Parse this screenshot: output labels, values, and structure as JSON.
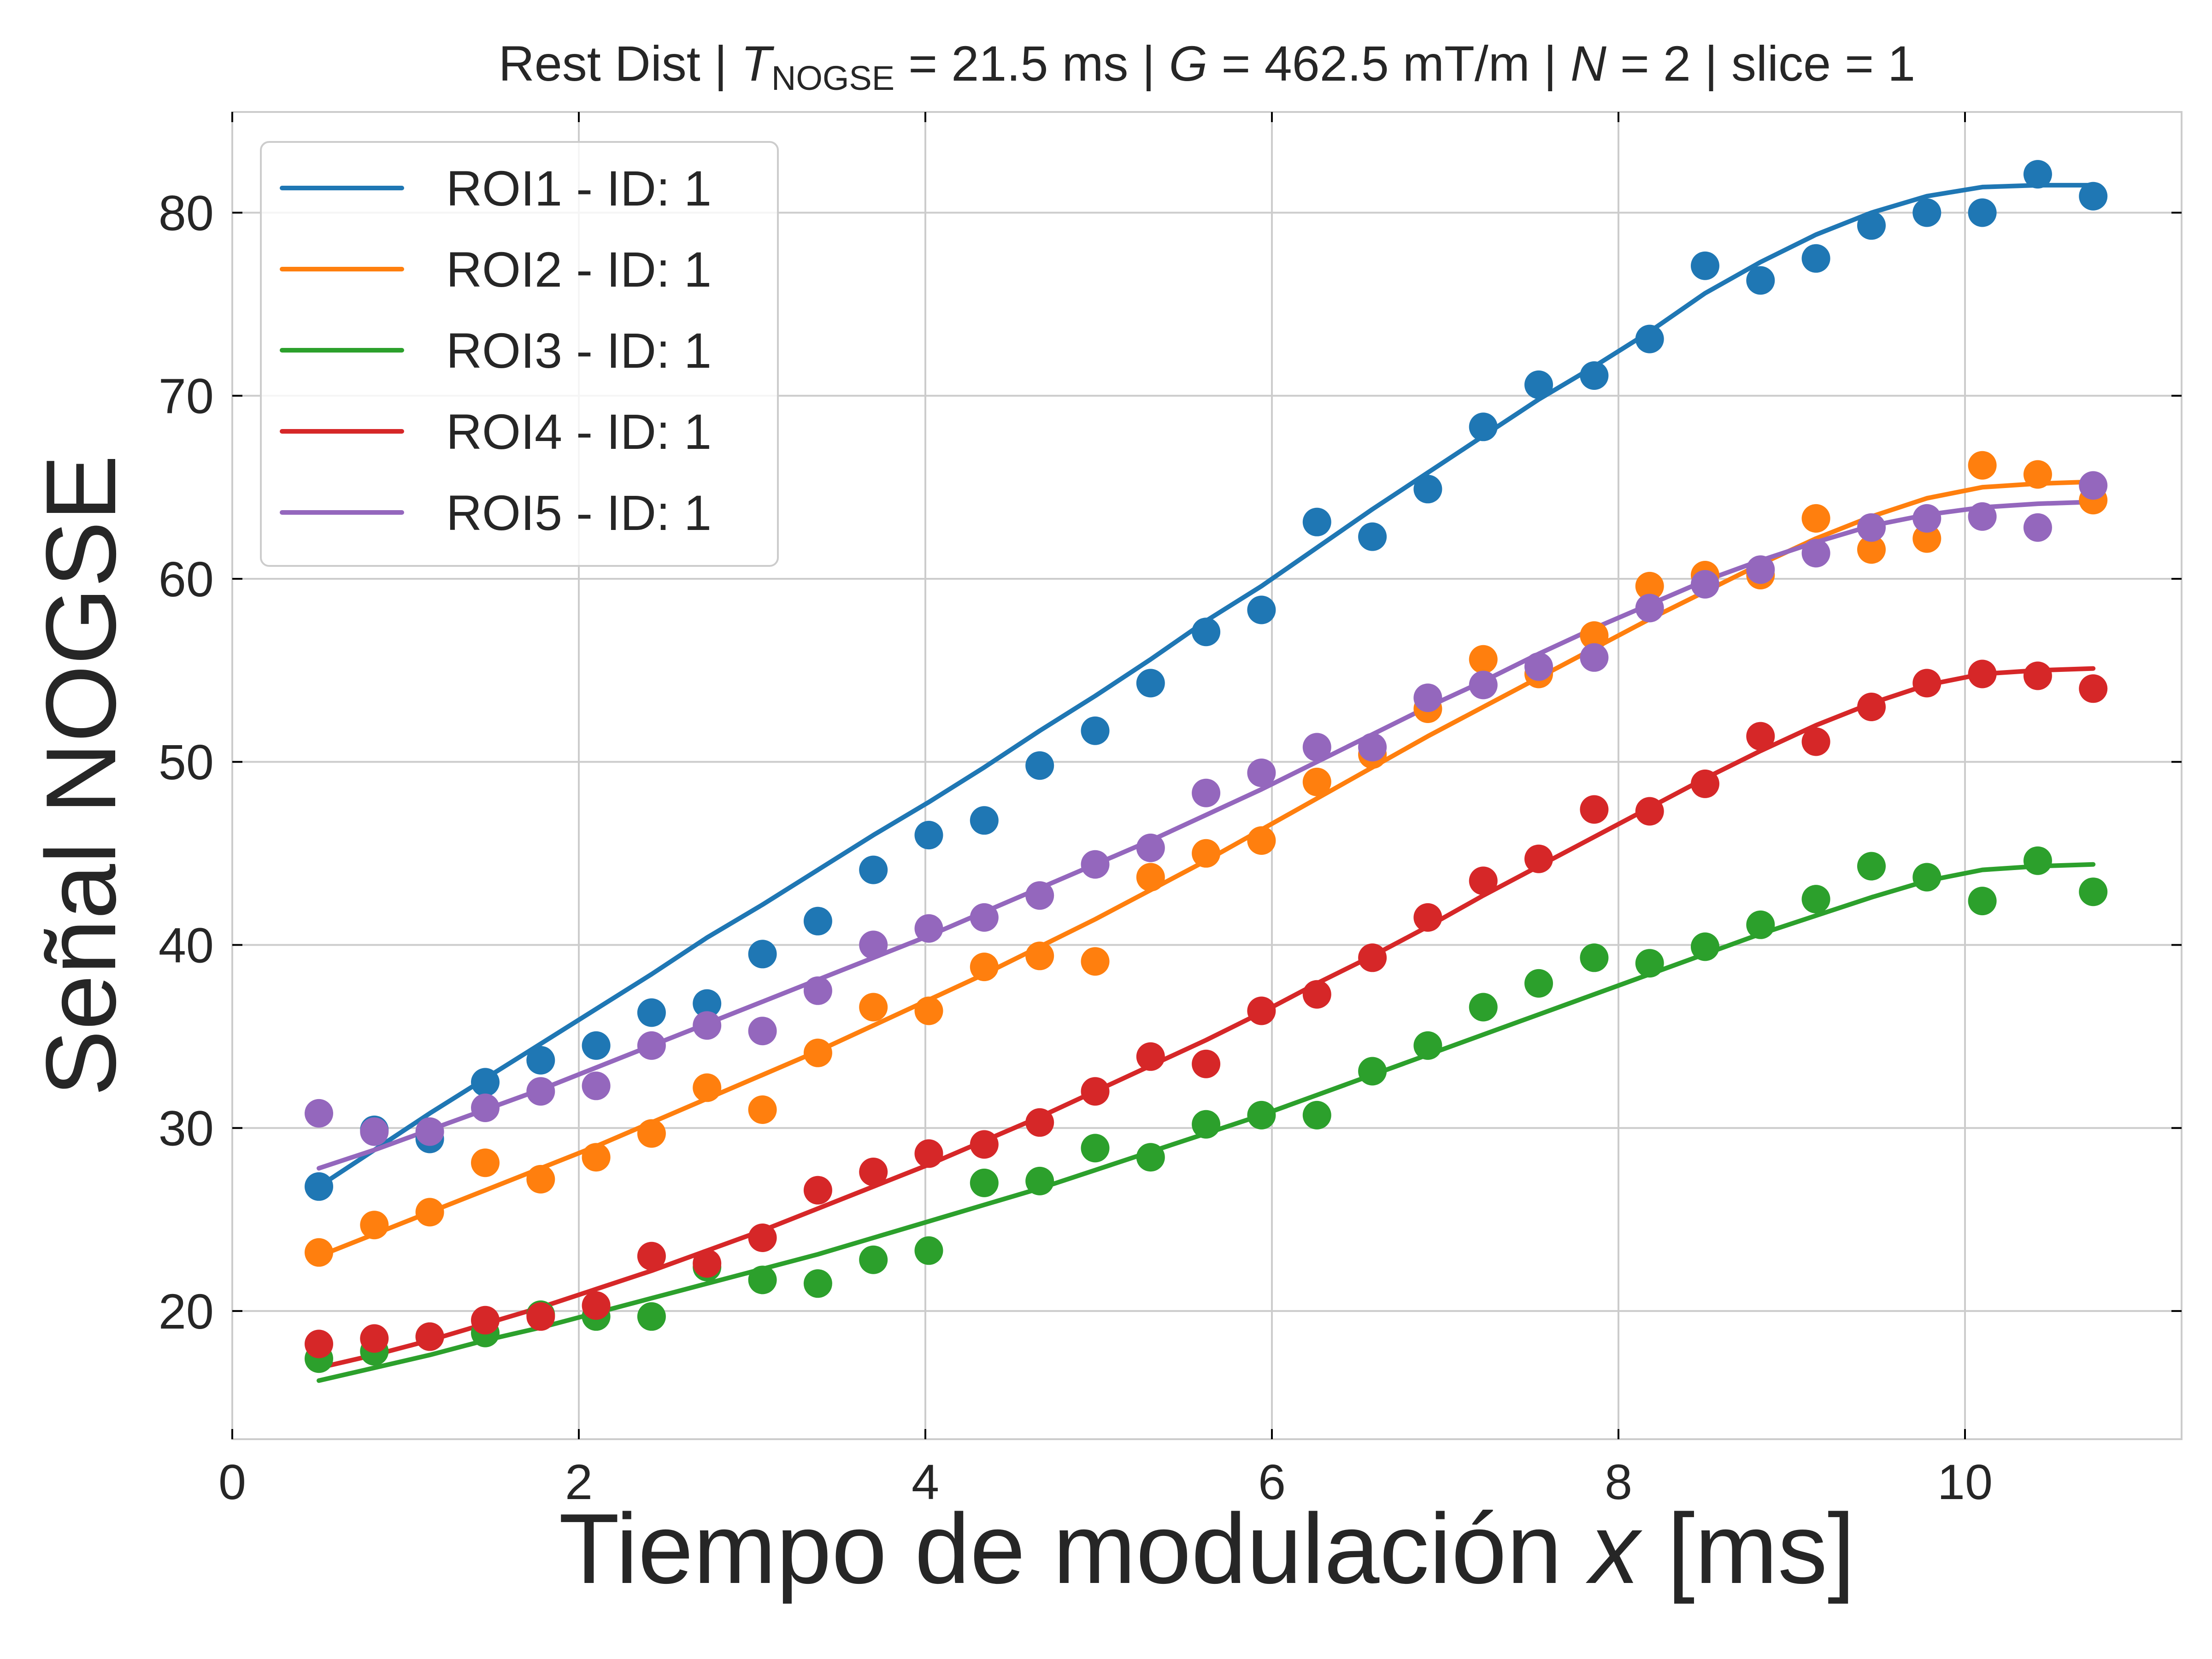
{
  "chart_data": {
    "type": "scatter",
    "title": {
      "prefix": "Rest Dist | ",
      "t_symbol": "T",
      "t_subscript": "NOGSE",
      "t_value": " = 21.5 ms | ",
      "g_symbol": "G",
      "g_value": " = 462.5 mT/m | ",
      "n_symbol": "N",
      "n_value": " = 2 | slice = 1"
    },
    "xlabel": {
      "prefix": "Tiempo de modulación ",
      "var": "x",
      "unit": " [ms]"
    },
    "ylabel": "Señal NOGSE",
    "xlim": [
      0,
      11.25
    ],
    "ylim": [
      13,
      85.5
    ],
    "xticks": [
      0,
      2,
      4,
      6,
      8,
      10
    ],
    "yticks": [
      20,
      30,
      40,
      50,
      60,
      70,
      80
    ],
    "grid": true,
    "legend_position": "top-left",
    "x": [
      0.5,
      0.82,
      1.14,
      1.46,
      1.78,
      2.1,
      2.42,
      2.74,
      3.06,
      3.38,
      3.7,
      4.02,
      4.34,
      4.66,
      4.98,
      5.3,
      5.62,
      5.94,
      6.26,
      6.58,
      6.9,
      7.22,
      7.54,
      7.86,
      8.18,
      8.5,
      8.82,
      9.14,
      9.46,
      9.78,
      10.1,
      10.42,
      10.74
    ],
    "series": [
      {
        "name": "ROI1 - ID: 1",
        "color": "#1f77b4",
        "points": [
          26.8,
          29.9,
          29.4,
          32.5,
          33.7,
          34.5,
          36.3,
          36.8,
          39.5,
          41.3,
          44.1,
          46.0,
          46.8,
          49.8,
          51.7,
          54.3,
          57.1,
          58.3,
          63.1,
          62.3,
          64.9,
          68.3,
          70.6,
          71.1,
          73.1,
          77.1,
          76.3,
          77.5,
          79.3,
          80.0,
          80.0,
          82.1,
          80.9
        ],
        "fit": [
          26.8,
          28.8,
          30.8,
          32.7,
          34.6,
          36.5,
          38.4,
          40.4,
          42.2,
          44.1,
          46.0,
          47.8,
          49.7,
          51.7,
          53.6,
          55.6,
          57.7,
          59.6,
          61.7,
          63.8,
          65.8,
          67.8,
          69.8,
          71.6,
          73.5,
          75.6,
          77.3,
          78.8,
          80.0,
          80.9,
          81.4,
          81.5,
          81.5
        ]
      },
      {
        "name": "ROI2 - ID: 1",
        "color": "#ff7f0e",
        "points": [
          23.2,
          24.7,
          25.4,
          28.1,
          27.2,
          28.4,
          29.7,
          32.2,
          31.0,
          34.1,
          36.6,
          36.4,
          38.8,
          39.4,
          39.1,
          43.7,
          45.0,
          45.7,
          48.9,
          50.4,
          52.9,
          55.6,
          54.8,
          56.9,
          59.6,
          60.2,
          60.2,
          63.3,
          61.6,
          62.2,
          66.2,
          65.7,
          64.3
        ],
        "fit": [
          23.0,
          24.2,
          25.4,
          26.6,
          27.8,
          29.0,
          30.3,
          31.6,
          32.9,
          34.2,
          35.6,
          37.0,
          38.4,
          39.9,
          41.4,
          43.0,
          44.6,
          46.3,
          48.0,
          49.7,
          51.4,
          53.0,
          54.6,
          56.2,
          57.8,
          59.3,
          60.8,
          62.2,
          63.4,
          64.4,
          65.0,
          65.2,
          65.3
        ]
      },
      {
        "name": "ROI3 - ID: 1",
        "color": "#2ca02c",
        "points": [
          17.4,
          17.8,
          18.6,
          18.8,
          19.8,
          19.7,
          19.7,
          22.4,
          21.7,
          21.5,
          22.8,
          23.3,
          27.0,
          27.1,
          28.9,
          28.4,
          30.2,
          30.7,
          30.7,
          33.1,
          34.5,
          36.6,
          37.9,
          39.3,
          39.0,
          39.9,
          41.1,
          42.5,
          44.3,
          43.7,
          42.4,
          44.6,
          42.9
        ],
        "fit": [
          16.2,
          16.9,
          17.6,
          18.4,
          19.1,
          19.9,
          20.7,
          21.5,
          22.3,
          23.1,
          24.0,
          24.9,
          25.8,
          26.7,
          27.7,
          28.7,
          29.7,
          30.7,
          31.8,
          32.9,
          34.0,
          35.1,
          36.2,
          37.3,
          38.4,
          39.5,
          40.6,
          41.6,
          42.6,
          43.5,
          44.1,
          44.3,
          44.4
        ]
      },
      {
        "name": "ROI4 - ID: 1",
        "color": "#d62728",
        "points": [
          18.2,
          18.5,
          18.6,
          19.5,
          19.7,
          20.3,
          23.0,
          22.6,
          24.0,
          26.6,
          27.6,
          28.6,
          29.1,
          30.3,
          32.0,
          33.9,
          33.5,
          36.4,
          37.3,
          39.3,
          41.5,
          43.5,
          44.7,
          47.4,
          47.3,
          48.8,
          51.4,
          51.1,
          53.0,
          54.3,
          54.8,
          54.7,
          54.0
        ],
        "fit": [
          16.9,
          17.6,
          18.4,
          19.3,
          20.2,
          21.2,
          22.2,
          23.3,
          24.4,
          25.6,
          26.8,
          28.0,
          29.3,
          30.6,
          32.0,
          33.4,
          34.8,
          36.3,
          37.9,
          39.4,
          41.0,
          42.7,
          44.3,
          45.9,
          47.5,
          49.1,
          50.6,
          52.0,
          53.2,
          54.2,
          54.8,
          55.0,
          55.1
        ]
      },
      {
        "name": "ROI5 - ID: 1",
        "color": "#9467bd",
        "points": [
          30.8,
          29.8,
          29.8,
          31.1,
          32.0,
          32.3,
          34.5,
          35.6,
          35.3,
          37.5,
          40.0,
          40.9,
          41.5,
          42.7,
          44.4,
          45.3,
          48.3,
          49.4,
          50.8,
          50.8,
          53.5,
          54.2,
          55.2,
          55.7,
          58.4,
          59.7,
          60.5,
          61.4,
          62.8,
          63.3,
          63.4,
          62.8,
          65.1
        ],
        "fit": [
          27.8,
          28.8,
          29.9,
          31.0,
          32.1,
          33.3,
          34.5,
          35.7,
          36.9,
          38.1,
          39.3,
          40.5,
          41.8,
          43.1,
          44.4,
          45.7,
          47.1,
          48.5,
          50.0,
          51.5,
          53.0,
          54.4,
          55.9,
          57.3,
          58.6,
          59.9,
          61.0,
          62.0,
          62.9,
          63.5,
          63.9,
          64.1,
          64.2
        ]
      }
    ]
  }
}
